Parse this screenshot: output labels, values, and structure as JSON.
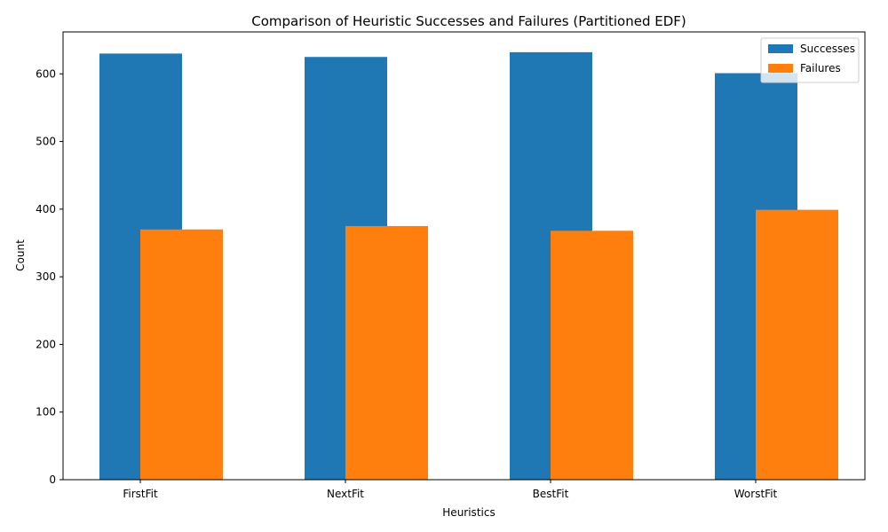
{
  "chart_data": {
    "type": "bar",
    "title": "Comparison of Heuristic Successes and Failures (Partitioned EDF)",
    "xlabel": "Heuristics",
    "ylabel": "Count",
    "categories": [
      "FirstFit",
      "NextFit",
      "BestFit",
      "WorstFit"
    ],
    "series": [
      {
        "name": "Successes",
        "values": [
          630,
          625,
          632,
          601
        ],
        "color": "#1f77b4"
      },
      {
        "name": "Failures",
        "values": [
          370,
          375,
          368,
          399
        ],
        "color": "#ff7f0e"
      }
    ],
    "ylim": [
      0,
      662
    ],
    "yticks": [
      0,
      100,
      200,
      300,
      400,
      500,
      600
    ],
    "legend_position": "top-right",
    "grid": false
  }
}
